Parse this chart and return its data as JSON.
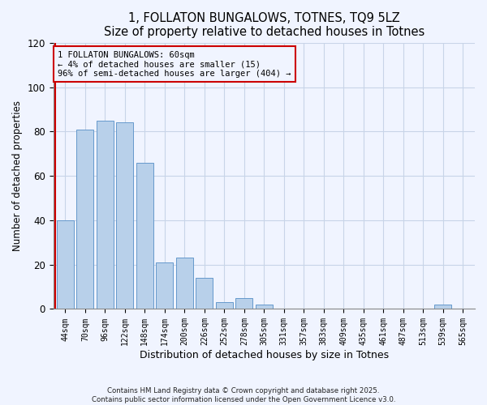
{
  "title": "1, FOLLATON BUNGALOWS, TOTNES, TQ9 5LZ",
  "subtitle": "Size of property relative to detached houses in Totnes",
  "xlabel": "Distribution of detached houses by size in Totnes",
  "ylabel": "Number of detached properties",
  "bar_labels": [
    "44sqm",
    "70sqm",
    "96sqm",
    "122sqm",
    "148sqm",
    "174sqm",
    "200sqm",
    "226sqm",
    "252sqm",
    "278sqm",
    "305sqm",
    "331sqm",
    "357sqm",
    "383sqm",
    "409sqm",
    "435sqm",
    "461sqm",
    "487sqm",
    "513sqm",
    "539sqm",
    "565sqm"
  ],
  "bar_values": [
    40,
    81,
    85,
    84,
    66,
    21,
    23,
    14,
    3,
    5,
    2,
    0,
    0,
    0,
    0,
    0,
    0,
    0,
    0,
    2,
    0
  ],
  "bar_color": "#b8d0ea",
  "bar_edge_color": "#6699cc",
  "vline_color": "#cc0000",
  "annotation_text": "1 FOLLATON BUNGALOWS: 60sqm\n← 4% of detached houses are smaller (15)\n96% of semi-detached houses are larger (404) →",
  "annotation_box_color": "#cc0000",
  "ylim": [
    0,
    120
  ],
  "yticks": [
    0,
    20,
    40,
    60,
    80,
    100,
    120
  ],
  "footer_text": "Contains HM Land Registry data © Crown copyright and database right 2025.\nContains public sector information licensed under the Open Government Licence v3.0.",
  "bg_color": "#f0f4ff",
  "grid_color": "#c8d4e8"
}
